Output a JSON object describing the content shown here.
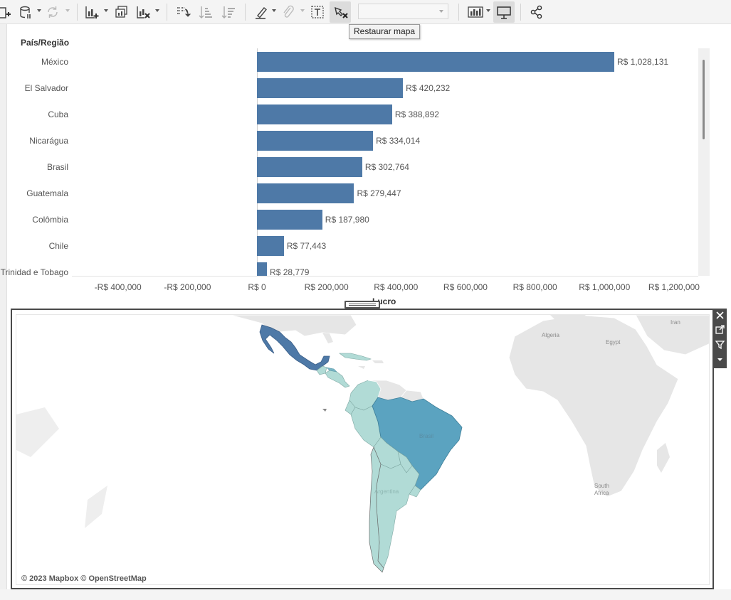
{
  "toolbar": {
    "icons": [
      "add-datasource-icon",
      "datasource-icon",
      "refresh-icon",
      "new-sheet-icon",
      "duplicate-sheet-icon",
      "clear-sheet-icon",
      "swap-icon",
      "sort-ascending-icon",
      "sort-descending-icon",
      "highlight-icon",
      "group-icon",
      "label-icon",
      "pin-map-icon",
      "show-me-icon",
      "presentation-icon",
      "share-icon"
    ],
    "tooltip": "Restaurar mapa",
    "fit_dropdown_value": ""
  },
  "chart": {
    "column_header": "País/Região",
    "axis_title": "Lucro",
    "bar_color": "#4e79a7",
    "rows": [
      {
        "label": "México",
        "value_label": "R$ 1,028,131"
      },
      {
        "label": "El Salvador",
        "value_label": "R$ 420,232"
      },
      {
        "label": "Cuba",
        "value_label": "R$ 388,892"
      },
      {
        "label": "Nicarágua",
        "value_label": "R$ 334,014"
      },
      {
        "label": "Brasil",
        "value_label": "R$ 302,764"
      },
      {
        "label": "Guatemala",
        "value_label": "R$ 279,447"
      },
      {
        "label": "Colômbia",
        "value_label": "R$ 187,980"
      },
      {
        "label": "Chile",
        "value_label": "R$ 77,443"
      },
      {
        "label": "Trinidad e Tobago",
        "value_label": "R$ 28,779"
      }
    ],
    "ticks": [
      "-R$ 400,000",
      "-R$ 200,000",
      "R$ 0",
      "R$ 200,000",
      "R$ 400,000",
      "R$ 600,000",
      "R$ 800,000",
      "R$ 1,000,000",
      "R$ 1,200,000"
    ]
  },
  "chart_data": {
    "type": "bar",
    "orientation": "horizontal",
    "categories": [
      "México",
      "El Salvador",
      "Cuba",
      "Nicarágua",
      "Brasil",
      "Guatemala",
      "Colômbia",
      "Chile",
      "Trinidad e Tobago"
    ],
    "values": [
      1028131,
      420232,
      388892,
      334014,
      302764,
      279447,
      187980,
      77443,
      28779
    ],
    "xlabel": "Lucro",
    "ylabel": "País/Região",
    "xlim": [
      -530000,
      1270000
    ],
    "grid": false
  },
  "map": {
    "attribution": "© 2023 Mapbox © OpenStreetMap",
    "labels": {
      "algeria": "Algeria",
      "egypt": "Egypt",
      "iran": "Iran",
      "brazil": "Brasil",
      "argentina": "Argentina",
      "south_africa_1": "South",
      "south_africa_2": "Africa"
    },
    "colors": {
      "mexico": "#4e79a7",
      "brazil": "#5ba3c0",
      "light": "#b1dbd6",
      "land": "#e6e6e6"
    }
  }
}
